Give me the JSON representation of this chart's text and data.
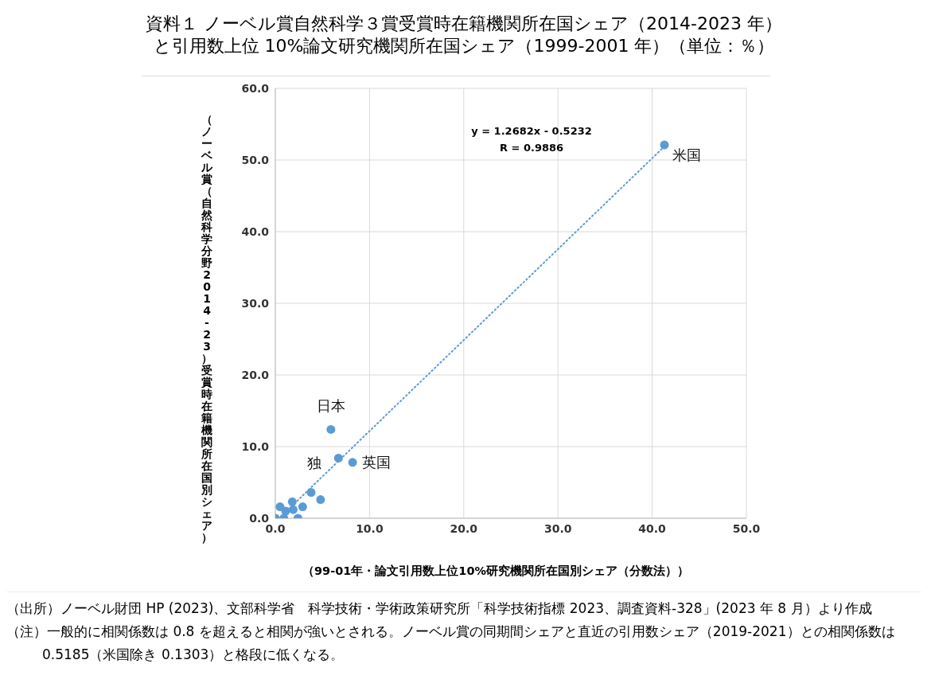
{
  "chart_data": {
    "type": "scatter",
    "title": "資料１ ノーベル賞自然科学３賞受賞時在籍機関所在国シェア（2014-2023 年）と引用数上位 10%論文研究機関所在国シェア（1999-2001 年）（単位：％）",
    "xlabel": "（99-01年・論文引用数上位10%研究機関所在国別シェア（分数法））",
    "ylabel": "（ノーベル賞（自然科学分野2014-23）受賞時在籍機関所在国別シェア）",
    "xlim": [
      0,
      50
    ],
    "ylim": [
      0,
      60
    ],
    "xticks": [
      {
        "value": 0,
        "label": "0.0"
      },
      {
        "value": 10,
        "label": "10.0"
      },
      {
        "value": 20,
        "label": "20.0"
      },
      {
        "value": 30,
        "label": "30.0"
      },
      {
        "value": 40,
        "label": "40.0"
      },
      {
        "value": 50,
        "label": "50.0"
      }
    ],
    "yticks": [
      {
        "value": 0,
        "label": "0.0"
      },
      {
        "value": 10,
        "label": "10.0"
      },
      {
        "value": 20,
        "label": "20.0"
      },
      {
        "value": 30,
        "label": "30.0"
      },
      {
        "value": 40,
        "label": "40.0"
      },
      {
        "value": 50,
        "label": "50.0"
      },
      {
        "value": 60,
        "label": "60.0"
      }
    ],
    "grid": true,
    "legend": false,
    "series": [
      {
        "color": "#5b9bd5",
        "marker": "circle",
        "x": [
          41.3,
          5.9,
          6.7,
          8.2,
          0.0,
          0.9,
          2.4,
          0.5,
          1.1,
          1.8,
          1.9,
          2.9,
          3.8,
          4.8
        ],
        "values": [
          52.1,
          12.4,
          8.4,
          7.8,
          0.0,
          0.0,
          0.0,
          1.6,
          1.0,
          2.3,
          1.2,
          1.6,
          3.6,
          2.6
        ],
        "value_labels": [
          "米国",
          "日本",
          "独",
          "英国",
          null,
          null,
          null,
          null,
          null,
          null,
          null,
          null,
          null,
          null
        ]
      },
      {
        "type": "line",
        "color": "#5b9bd5",
        "marker": "none",
        "line_style": "dotted",
        "x": [
          0.8,
          41.3
        ],
        "values": [
          0.5,
          51.9
        ]
      }
    ],
    "annotations": [
      "y = 1.2682x - 0.5232",
      "R = 0.9886",
      "（出所）ノーベル財団 HP (2023)、文部科学省　科学技術・学術政策研究所「科学技術指標 2023、調査資料-328」(2023 年 8 月）より作成",
      "（注）一般的に相関係数は 0.8 を超えると相関が強いとされる。ノーベル賞の同期間シェアと直近の引用数シェア（2019-2021）との相関係数は 0.5185（米国除き 0.1303）と格段に低くなる。"
    ]
  }
}
